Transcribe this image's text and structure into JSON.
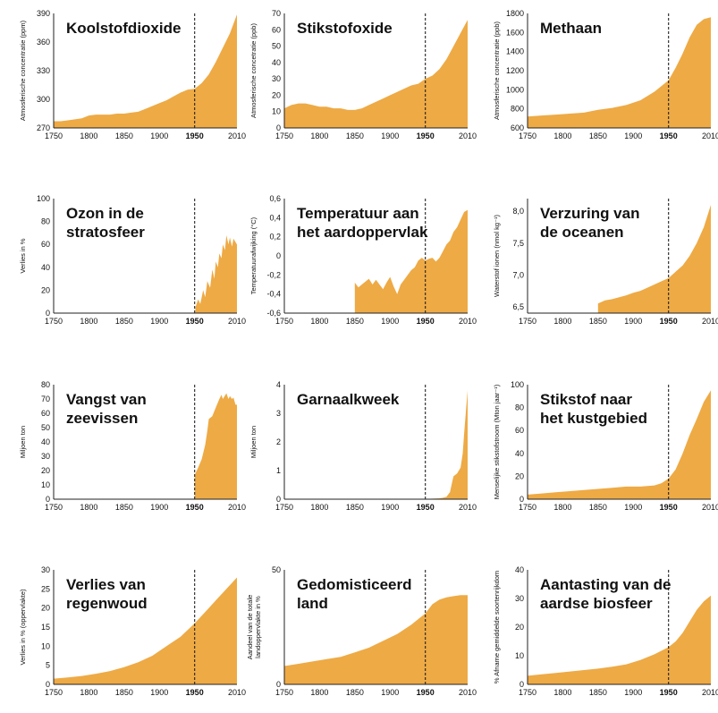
{
  "colors": {
    "area": "#EEAA45",
    "axis": "#222222",
    "text": "#111111",
    "background": "#ffffff"
  },
  "marker_year": 1950,
  "x_ticks": [
    "1750",
    "1800",
    "1850",
    "1900",
    "1950",
    "2010"
  ],
  "chart_data": [
    {
      "type": "area",
      "title": [
        "Koolstofdioxide"
      ],
      "ylabel": [
        "Atmosferische concentratie (ppm)"
      ],
      "xlim": [
        1750,
        2010
      ],
      "ylim": [
        270,
        390
      ],
      "yticks": [
        "270",
        "300",
        "330",
        "360",
        "390"
      ],
      "x": [
        1750,
        1760,
        1770,
        1780,
        1790,
        1800,
        1810,
        1820,
        1830,
        1840,
        1850,
        1860,
        1870,
        1880,
        1890,
        1900,
        1910,
        1920,
        1930,
        1940,
        1950,
        1960,
        1970,
        1980,
        1990,
        2000,
        2010
      ],
      "y": [
        277,
        277,
        278,
        279,
        280,
        283,
        284,
        284,
        284,
        285,
        285,
        286,
        287,
        290,
        293,
        296,
        299,
        303,
        307,
        310,
        311,
        317,
        326,
        339,
        354,
        369,
        389
      ]
    },
    {
      "type": "area",
      "title": [
        "Stikstofoxide"
      ],
      "ylabel": [
        "Atmosferische concetratie (ppb)"
      ],
      "xlim": [
        1750,
        2010
      ],
      "ylim": [
        0,
        70
      ],
      "yticks": [
        "0",
        "10",
        "20",
        "30",
        "40",
        "50",
        "60",
        "70"
      ],
      "x": [
        1750,
        1760,
        1770,
        1780,
        1790,
        1800,
        1810,
        1820,
        1830,
        1840,
        1850,
        1860,
        1870,
        1880,
        1890,
        1900,
        1910,
        1920,
        1930,
        1940,
        1950,
        1960,
        1970,
        1980,
        1990,
        2000,
        2010
      ],
      "y": [
        12,
        14,
        15,
        15,
        14,
        13,
        13,
        12,
        12,
        11,
        11,
        12,
        14,
        16,
        18,
        20,
        22,
        24,
        26,
        27,
        30,
        32,
        36,
        42,
        50,
        58,
        66
      ]
    },
    {
      "type": "area",
      "title": [
        "Methaan"
      ],
      "ylabel": [
        "Atmosferische concentratie (ppb)"
      ],
      "xlim": [
        1750,
        2010
      ],
      "ylim": [
        600,
        1800
      ],
      "yticks": [
        "600",
        "800",
        "1000",
        "1200",
        "1400",
        "1600",
        "1800"
      ],
      "x": [
        1750,
        1770,
        1790,
        1810,
        1830,
        1850,
        1870,
        1890,
        1910,
        1930,
        1950,
        1960,
        1970,
        1980,
        1990,
        2000,
        2010
      ],
      "y": [
        720,
        730,
        740,
        750,
        760,
        790,
        810,
        840,
        890,
        980,
        1100,
        1230,
        1380,
        1550,
        1680,
        1740,
        1760
      ]
    },
    {
      "type": "area",
      "title": [
        "Ozon in de",
        "stratosfeer"
      ],
      "ylabel": [
        "Verlies in %"
      ],
      "xlim": [
        1750,
        2010
      ],
      "ylim": [
        0,
        100
      ],
      "yticks": [
        "0",
        "20",
        "40",
        "60",
        "80",
        "100"
      ],
      "x": [
        1951,
        1955,
        1958,
        1962,
        1965,
        1968,
        1972,
        1975,
        1978,
        1980,
        1983,
        1985,
        1988,
        1990,
        1993,
        1995,
        1998,
        2000,
        2003,
        2005,
        2008,
        2010
      ],
      "y": [
        5,
        12,
        8,
        20,
        14,
        28,
        22,
        38,
        30,
        45,
        40,
        52,
        48,
        60,
        55,
        68,
        60,
        66,
        58,
        65,
        62,
        60
      ]
    },
    {
      "type": "area",
      "title": [
        "Temperatuur aan",
        "het aardoppervlak"
      ],
      "ylabel": [
        "Temperatuurafwijking (°C)"
      ],
      "xlim": [
        1750,
        2010
      ],
      "ylim": [
        -0.6,
        0.6
      ],
      "yticks": [
        "-0,6",
        "-0,4",
        "-0,2",
        "0",
        "0,2",
        "0,4",
        "0,6"
      ],
      "x": [
        1850,
        1855,
        1860,
        1865,
        1870,
        1875,
        1880,
        1885,
        1890,
        1895,
        1900,
        1905,
        1910,
        1915,
        1920,
        1925,
        1930,
        1935,
        1940,
        1945,
        1950,
        1955,
        1960,
        1965,
        1970,
        1975,
        1980,
        1985,
        1990,
        1995,
        2000,
        2005,
        2010
      ],
      "y": [
        -0.28,
        -0.33,
        -0.3,
        -0.27,
        -0.24,
        -0.3,
        -0.25,
        -0.3,
        -0.35,
        -0.28,
        -0.22,
        -0.32,
        -0.4,
        -0.3,
        -0.25,
        -0.2,
        -0.15,
        -0.12,
        -0.05,
        -0.02,
        -0.05,
        -0.03,
        -0.02,
        -0.06,
        -0.02,
        0.05,
        0.12,
        0.16,
        0.25,
        0.3,
        0.38,
        0.46,
        0.48
      ]
    },
    {
      "type": "area",
      "title": [
        "Verzuring van",
        "de oceanen"
      ],
      "ylabel": [
        "Waterstof ionen (nmol kg⁻¹)"
      ],
      "xlim": [
        1750,
        2010
      ],
      "ylim": [
        6.4,
        8.2
      ],
      "yticks": [
        "6,5",
        "7,0",
        "7,5",
        "8,0"
      ],
      "x": [
        1850,
        1860,
        1870,
        1880,
        1890,
        1900,
        1910,
        1920,
        1930,
        1940,
        1950,
        1960,
        1970,
        1980,
        1990,
        2000,
        2010
      ],
      "y": [
        6.55,
        6.6,
        6.62,
        6.65,
        6.68,
        6.72,
        6.75,
        6.8,
        6.85,
        6.9,
        6.95,
        7.05,
        7.15,
        7.3,
        7.5,
        7.75,
        8.1
      ]
    },
    {
      "type": "area",
      "title": [
        "Vangst van",
        "zeevissen"
      ],
      "ylabel": [
        "Miljoen ton"
      ],
      "xlim": [
        1750,
        2010
      ],
      "ylim": [
        0,
        80
      ],
      "yticks": [
        "0",
        "10",
        "20",
        "30",
        "40",
        "50",
        "60",
        "70",
        "80"
      ],
      "x": [
        1950,
        1955,
        1960,
        1965,
        1968,
        1970,
        1975,
        1980,
        1985,
        1988,
        1990,
        1995,
        1998,
        2000,
        2003,
        2005,
        2008,
        2010
      ],
      "y": [
        17,
        22,
        28,
        38,
        48,
        56,
        58,
        64,
        70,
        73,
        70,
        74,
        70,
        72,
        70,
        71,
        66,
        66
      ]
    },
    {
      "type": "area",
      "title": [
        "Garnaalkweek"
      ],
      "ylabel": [
        "Miljoen ton"
      ],
      "xlim": [
        1750,
        2010
      ],
      "ylim": [
        0,
        4
      ],
      "yticks": [
        "0",
        "1",
        "2",
        "3",
        "4"
      ],
      "x": [
        1950,
        1960,
        1970,
        1975,
        1980,
        1985,
        1988,
        1990,
        1995,
        2000,
        2003,
        2005,
        2008,
        2010
      ],
      "y": [
        0.01,
        0.02,
        0.03,
        0.05,
        0.08,
        0.25,
        0.6,
        0.8,
        0.9,
        1.1,
        1.6,
        2.3,
        3.2,
        3.8
      ]
    },
    {
      "type": "area",
      "title": [
        "Stikstof naar",
        "het kustgebied"
      ],
      "ylabel": [
        "Menselijke stikstofstroom (Mton jaar⁻¹)"
      ],
      "xlim": [
        1750,
        2010
      ],
      "ylim": [
        0,
        100
      ],
      "yticks": [
        "0",
        "20",
        "40",
        "60",
        "80",
        "100"
      ],
      "x": [
        1750,
        1770,
        1790,
        1810,
        1830,
        1850,
        1870,
        1890,
        1910,
        1930,
        1940,
        1950,
        1960,
        1970,
        1980,
        1990,
        2000,
        2010
      ],
      "y": [
        4,
        5,
        6,
        7,
        8,
        9,
        10,
        11,
        11,
        12,
        14,
        18,
        26,
        40,
        56,
        70,
        85,
        95
      ]
    },
    {
      "type": "area",
      "title": [
        "Verlies van",
        "regenwoud"
      ],
      "ylabel": [
        "Verlies in % (oppervlakte)"
      ],
      "xlim": [
        1750,
        2010
      ],
      "ylim": [
        0,
        30
      ],
      "yticks": [
        "0",
        "5",
        "10",
        "15",
        "20",
        "25",
        "30"
      ],
      "x": [
        1750,
        1770,
        1790,
        1810,
        1830,
        1850,
        1870,
        1890,
        1910,
        1930,
        1950,
        1960,
        1970,
        1980,
        1990,
        2000,
        2010
      ],
      "y": [
        1.5,
        1.8,
        2.2,
        2.8,
        3.5,
        4.5,
        5.8,
        7.5,
        10,
        12.5,
        16,
        18,
        20,
        22,
        24,
        26,
        28
      ]
    },
    {
      "type": "area",
      "title": [
        "Gedomisticeerd",
        "land"
      ],
      "ylabel": [
        "Aandeel van de totale",
        "landoppervlakte in %"
      ],
      "xlim": [
        1750,
        2010
      ],
      "ylim": [
        0,
        50
      ],
      "yticks": [
        "0",
        "50"
      ],
      "x": [
        1750,
        1770,
        1790,
        1810,
        1830,
        1850,
        1870,
        1890,
        1910,
        1930,
        1950,
        1960,
        1970,
        1980,
        1990,
        2000,
        2010
      ],
      "y": [
        8,
        9,
        10,
        11,
        12,
        14,
        16,
        19,
        22,
        26,
        31,
        35,
        37,
        38,
        38.5,
        39,
        39
      ]
    },
    {
      "type": "area",
      "title": [
        "Aantasting van de",
        "aardse biosfeer"
      ],
      "ylabel": [
        "% Afname gemiddelde soortenrijkdom"
      ],
      "xlim": [
        1750,
        2010
      ],
      "ylim": [
        0,
        40
      ],
      "yticks": [
        "0",
        "10",
        "20",
        "30",
        "40"
      ],
      "x": [
        1750,
        1770,
        1790,
        1810,
        1830,
        1850,
        1870,
        1890,
        1910,
        1930,
        1950,
        1960,
        1970,
        1980,
        1990,
        2000,
        2010
      ],
      "y": [
        3,
        3.5,
        4,
        4.5,
        5,
        5.5,
        6.2,
        7,
        8.5,
        10.5,
        13,
        15,
        18,
        22,
        26,
        29,
        31
      ]
    }
  ]
}
